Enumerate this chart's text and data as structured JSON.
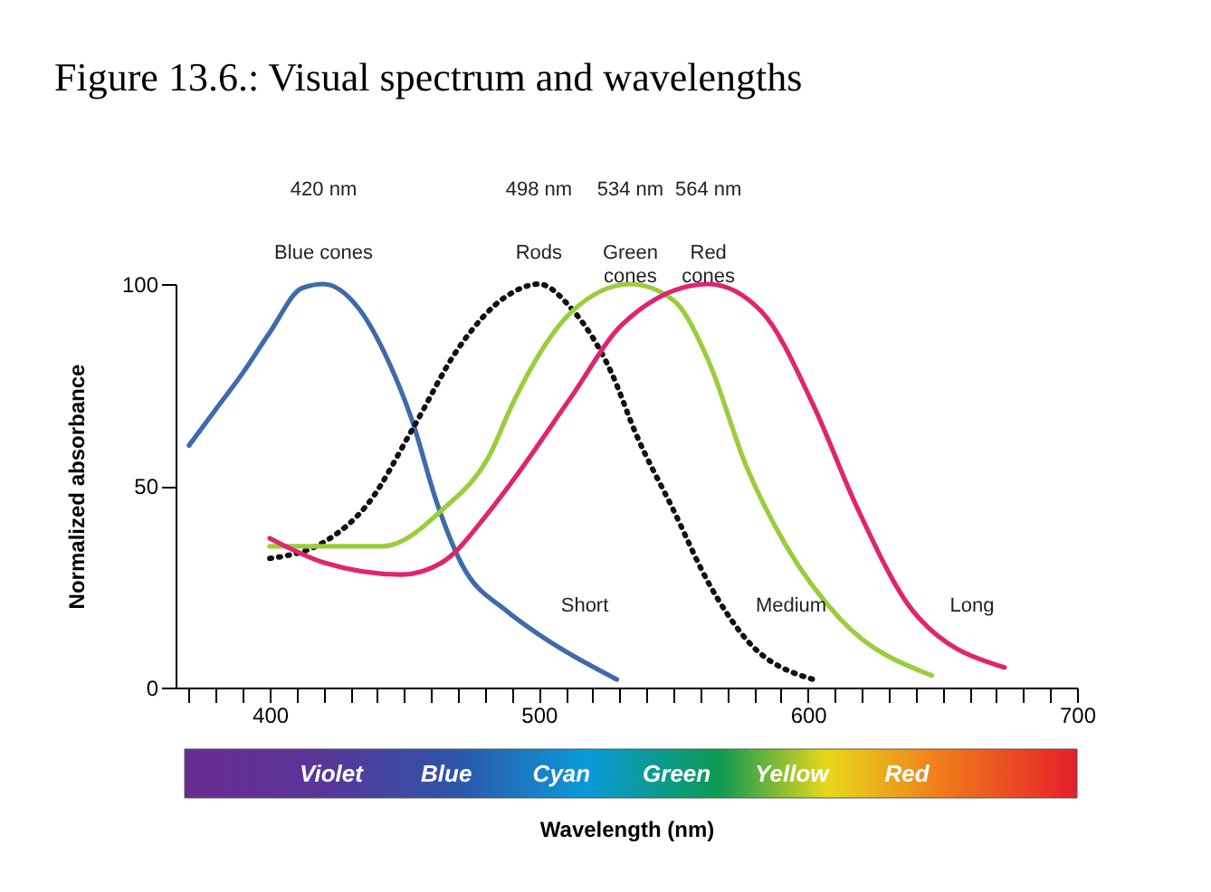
{
  "chart_data": {
    "type": "line",
    "title": "Figure 13.6.: Visual spectrum and wavelengths",
    "xlabel": "Wavelength (nm)",
    "ylabel": "Normalized absorbance",
    "xlim": [
      365,
      700
    ],
    "ylim": [
      0,
      100
    ],
    "yticks": [
      0,
      50,
      100
    ],
    "xticks": [
      {
        "value": 370,
        "label": null
      },
      {
        "value": 380,
        "label": null
      },
      {
        "value": 390,
        "label": null
      },
      400,
      {
        "value": 410,
        "label": null
      },
      {
        "value": 420,
        "label": null
      },
      {
        "value": 430,
        "label": null
      },
      {
        "value": 440,
        "label": null
      },
      {
        "value": 450,
        "label": null
      },
      {
        "value": 460,
        "label": null
      },
      {
        "value": 470,
        "label": null
      },
      {
        "value": 480,
        "label": null
      },
      {
        "value": 490,
        "label": null
      },
      500,
      {
        "value": 510,
        "label": null
      },
      {
        "value": 520,
        "label": null
      },
      {
        "value": 530,
        "label": null
      },
      {
        "value": 540,
        "label": null
      },
      {
        "value": 550,
        "label": null
      },
      {
        "value": 560,
        "label": null
      },
      {
        "value": 570,
        "label": null
      },
      {
        "value": 580,
        "label": null
      },
      {
        "value": 590,
        "label": null
      },
      600,
      {
        "value": 610,
        "label": null
      },
      {
        "value": 620,
        "label": null
      },
      {
        "value": 630,
        "label": null
      },
      {
        "value": 640,
        "label": null
      },
      {
        "value": 650,
        "label": null
      },
      {
        "value": 660,
        "label": null
      },
      {
        "value": 670,
        "label": null
      },
      {
        "value": 680,
        "label": null
      },
      {
        "value": 690,
        "label": null
      },
      700
    ],
    "grid": false,
    "marker": "none",
    "series": [
      {
        "name": "Blue cones",
        "color": "#3d6bab",
        "line_style": "solid",
        "x": [
          370,
          380,
          390,
          400,
          412,
          420,
          433,
          444,
          453,
          462,
          471,
          488,
          496,
          529
        ],
        "values": [
          60,
          69,
          78,
          88,
          99,
          100,
          94,
          81,
          66,
          46,
          31,
          19,
          15,
          2
        ]
      },
      {
        "name": "Rods",
        "color": "#111111",
        "line_style": "dotted",
        "x": [
          400,
          420,
          437,
          453,
          470,
          488,
          500,
          512,
          527,
          536,
          550,
          563,
          577,
          602
        ],
        "values": [
          32,
          36,
          46,
          64,
          84,
          97,
          100,
          94,
          78,
          63,
          44,
          26,
          12,
          2
        ]
      },
      {
        "name": "Green\ncones",
        "color": "#9acd3c",
        "line_style": "solid",
        "x": [
          400,
          418,
          442,
          464,
          482,
          490,
          512,
          534,
          550,
          563,
          577,
          592,
          612,
          646
        ],
        "values": [
          35,
          35,
          35,
          44,
          58,
          70,
          93,
          100,
          96,
          81,
          55,
          35,
          17,
          3
        ]
      },
      {
        "name": "Red\ncones",
        "color": "#e0246e",
        "line_style": "solid",
        "x": [
          400,
          420,
          449,
          464,
          482,
          490,
          512,
          531,
          563,
          583,
          602,
          618,
          639,
          673
        ],
        "values": [
          37,
          31,
          28,
          31,
          44,
          51,
          72,
          90,
          100,
          93,
          70,
          45,
          19,
          5
        ]
      }
    ],
    "annotations": [
      "420 nm",
      "498 nm",
      "534 nm",
      "564 nm",
      "Short",
      "Medium",
      "Long",
      "Violet",
      "Blue",
      "Cyan",
      "Green",
      "Yellow",
      "Red"
    ]
  }
}
